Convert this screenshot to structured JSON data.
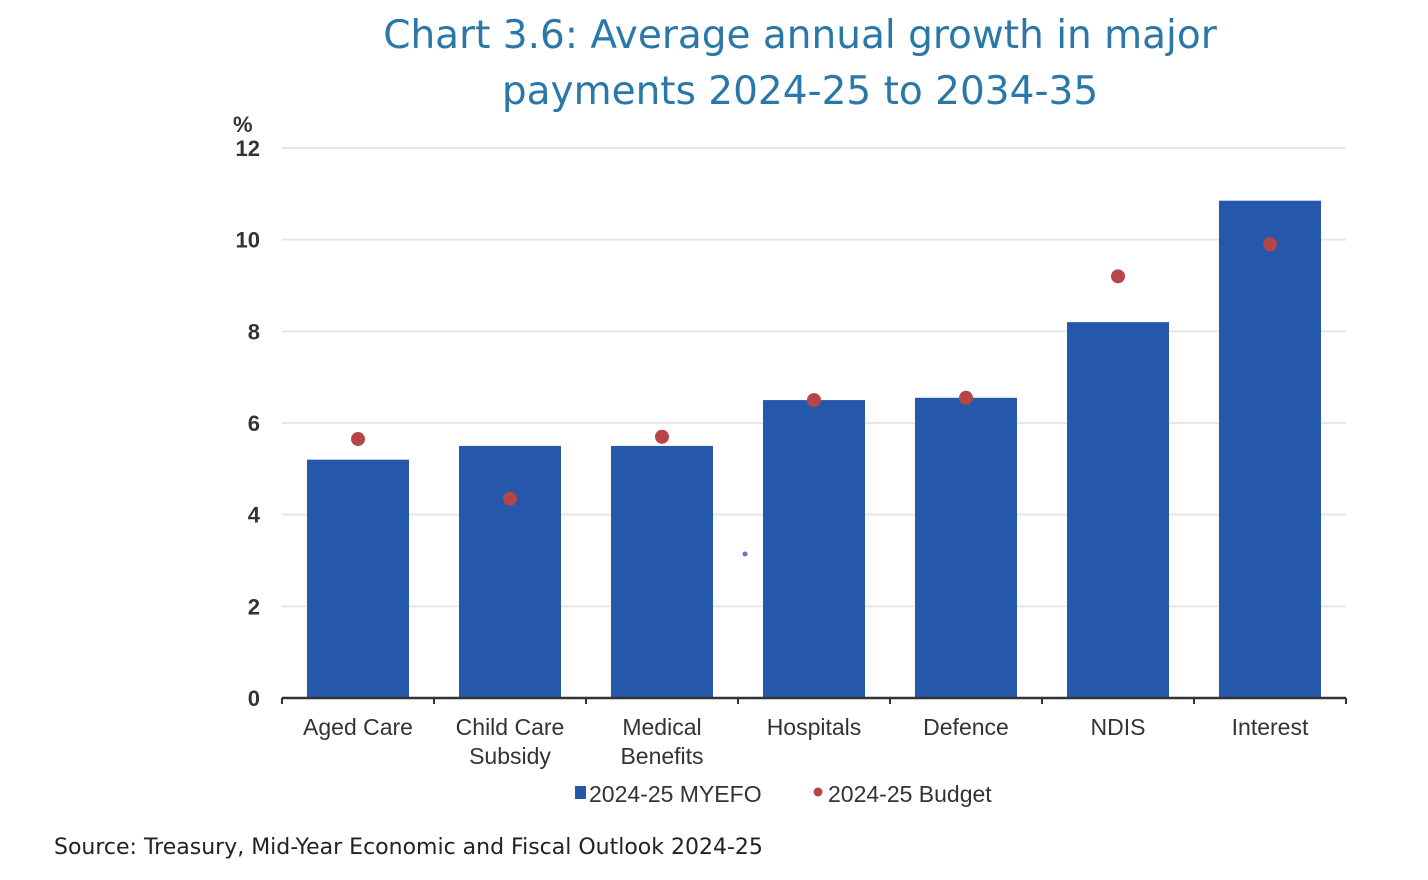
{
  "chart_data": {
    "type": "bar",
    "title_line1": "Chart 3.6: Average annual growth in major",
    "title_line2": "payments 2024-25 to 2034-35",
    "ylabel": "%",
    "xlabel": "",
    "ylim": [
      0,
      12
    ],
    "yticks": [
      0,
      2,
      4,
      6,
      8,
      10,
      12
    ],
    "ytick_labels": [
      "0",
      "2",
      "4",
      "6",
      "8",
      "10",
      "12"
    ],
    "grid": true,
    "categories": [
      [
        "Aged Care"
      ],
      [
        "Child Care",
        "Subsidy"
      ],
      [
        "Medical",
        "Benefits"
      ],
      [
        "Hospitals"
      ],
      [
        "Defence"
      ],
      [
        "NDIS"
      ],
      [
        "Interest"
      ]
    ],
    "series": [
      {
        "name": "2024-25 MYEFO",
        "kind": "bar",
        "color": "#2557ab",
        "values": [
          5.2,
          5.5,
          5.5,
          6.5,
          6.55,
          8.2,
          10.85
        ]
      },
      {
        "name": "2024-25 Budget",
        "kind": "marker",
        "color": "#b84545",
        "values": [
          5.65,
          4.35,
          5.7,
          6.5,
          6.55,
          9.2,
          9.9
        ]
      }
    ],
    "legend_position": "bottom-center",
    "source": "Source: Treasury, Mid-Year Economic and Fiscal Outlook 2024-25"
  }
}
